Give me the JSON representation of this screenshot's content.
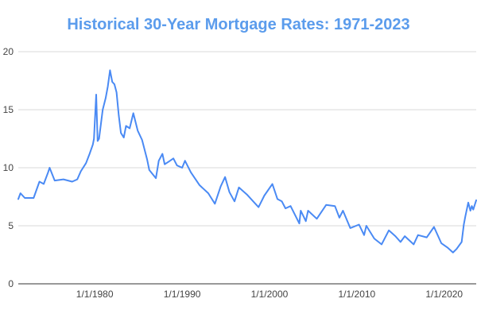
{
  "chart_data": {
    "type": "line",
    "title": "Historical 30-Year Mortgage Rates: 1971-2023",
    "xlabel": "",
    "ylabel": "",
    "x_axis_type": "date",
    "xlim": [
      "1971-04-02",
      "2023-08-31"
    ],
    "ylim": [
      0,
      20
    ],
    "y_ticks": [
      0,
      5,
      10,
      15,
      20
    ],
    "x_ticks": [
      {
        "date": "1980-01-01",
        "label": "1/1/1980"
      },
      {
        "date": "1990-01-01",
        "label": "1/1/1990"
      },
      {
        "date": "2000-01-01",
        "label": "1/1/2000"
      },
      {
        "date": "2010-01-01",
        "label": "1/1/2010"
      },
      {
        "date": "2020-01-01",
        "label": "1/1/2020"
      }
    ],
    "grid": "horizontal",
    "legend": "none",
    "colors": {
      "line": "#4A8AF4",
      "title": "#5B9CEC",
      "grid": "#d9d9d9",
      "axis": "#333333"
    },
    "series": [
      {
        "values": [
          [
            "1971-04-02",
            7.3
          ],
          [
            "1971-07-01",
            7.8
          ],
          [
            "1972-01-01",
            7.4
          ],
          [
            "1972-07-01",
            7.4
          ],
          [
            "1973-01-01",
            7.4
          ],
          [
            "1973-09-01",
            8.8
          ],
          [
            "1974-03-01",
            8.6
          ],
          [
            "1974-09-01",
            9.6
          ],
          [
            "1974-11-01",
            10.0
          ],
          [
            "1975-06-01",
            8.9
          ],
          [
            "1976-06-01",
            9.0
          ],
          [
            "1977-06-01",
            8.8
          ],
          [
            "1978-01-01",
            9.0
          ],
          [
            "1978-06-01",
            9.7
          ],
          [
            "1979-01-01",
            10.4
          ],
          [
            "1979-06-01",
            11.2
          ],
          [
            "1979-10-15",
            12.0
          ],
          [
            "1979-12-01",
            12.5
          ],
          [
            "1980-03-01",
            16.3
          ],
          [
            "1980-05-01",
            12.3
          ],
          [
            "1980-07-01",
            12.5
          ],
          [
            "1980-12-01",
            15.0
          ],
          [
            "1981-04-01",
            16.0
          ],
          [
            "1981-07-01",
            17.0
          ],
          [
            "1981-10-01",
            18.4
          ],
          [
            "1982-01-01",
            17.4
          ],
          [
            "1982-04-01",
            17.2
          ],
          [
            "1982-07-01",
            16.5
          ],
          [
            "1982-10-01",
            14.5
          ],
          [
            "1983-01-01",
            13.0
          ],
          [
            "1983-05-01",
            12.6
          ],
          [
            "1983-08-01",
            13.6
          ],
          [
            "1984-01-01",
            13.4
          ],
          [
            "1984-06-01",
            14.7
          ],
          [
            "1984-12-01",
            13.2
          ],
          [
            "1985-06-01",
            12.4
          ],
          [
            "1986-01-01",
            10.7
          ],
          [
            "1986-04-01",
            9.8
          ],
          [
            "1987-01-01",
            9.1
          ],
          [
            "1987-05-01",
            10.6
          ],
          [
            "1987-10-01",
            11.2
          ],
          [
            "1988-01-01",
            10.3
          ],
          [
            "1988-06-01",
            10.5
          ],
          [
            "1989-01-01",
            10.8
          ],
          [
            "1989-06-01",
            10.2
          ],
          [
            "1990-01-01",
            10.0
          ],
          [
            "1990-05-01",
            10.6
          ],
          [
            "1991-01-01",
            9.6
          ],
          [
            "1992-01-01",
            8.5
          ],
          [
            "1993-01-01",
            7.8
          ],
          [
            "1993-10-01",
            6.9
          ],
          [
            "1994-06-01",
            8.4
          ],
          [
            "1994-12-01",
            9.2
          ],
          [
            "1995-06-01",
            7.9
          ],
          [
            "1996-01-01",
            7.1
          ],
          [
            "1996-07-01",
            8.3
          ],
          [
            "1997-06-01",
            7.7
          ],
          [
            "1998-10-01",
            6.6
          ],
          [
            "1999-06-01",
            7.6
          ],
          [
            "2000-05-01",
            8.6
          ],
          [
            "2000-12-01",
            7.3
          ],
          [
            "2001-06-01",
            7.1
          ],
          [
            "2001-11-01",
            6.5
          ],
          [
            "2002-06-01",
            6.7
          ],
          [
            "2003-06-01",
            5.2
          ],
          [
            "2003-08-01",
            6.3
          ],
          [
            "2004-03-01",
            5.4
          ],
          [
            "2004-06-01",
            6.3
          ],
          [
            "2005-06-01",
            5.6
          ],
          [
            "2006-07-01",
            6.8
          ],
          [
            "2007-07-01",
            6.7
          ],
          [
            "2008-01-01",
            5.7
          ],
          [
            "2008-06-01",
            6.3
          ],
          [
            "2009-04-01",
            4.8
          ],
          [
            "2010-04-01",
            5.1
          ],
          [
            "2010-11-01",
            4.2
          ],
          [
            "2011-02-01",
            5.0
          ],
          [
            "2012-01-01",
            3.9
          ],
          [
            "2012-11-01",
            3.4
          ],
          [
            "2013-09-01",
            4.6
          ],
          [
            "2014-06-01",
            4.1
          ],
          [
            "2015-01-01",
            3.6
          ],
          [
            "2015-07-01",
            4.1
          ],
          [
            "2016-07-01",
            3.4
          ],
          [
            "2017-01-01",
            4.2
          ],
          [
            "2018-01-01",
            4.0
          ],
          [
            "2018-11-01",
            4.9
          ],
          [
            "2019-09-01",
            3.5
          ],
          [
            "2020-06-01",
            3.1
          ],
          [
            "2021-01-01",
            2.7
          ],
          [
            "2021-06-01",
            3.0
          ],
          [
            "2022-01-01",
            3.6
          ],
          [
            "2022-04-01",
            5.1
          ],
          [
            "2022-06-01",
            5.8
          ],
          [
            "2022-10-01",
            7.0
          ],
          [
            "2023-01-01",
            6.3
          ],
          [
            "2023-03-01",
            6.7
          ],
          [
            "2023-05-01",
            6.4
          ],
          [
            "2023-08-31",
            7.2
          ]
        ]
      }
    ]
  }
}
